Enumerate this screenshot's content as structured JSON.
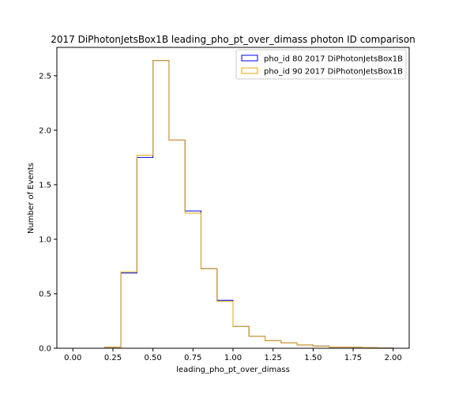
{
  "chart_data": {
    "type": "bar",
    "title": "2017 DiPhotonJetsBox1B leading_pho_pt_over_dimass photon ID comparison",
    "xlabel": "leading_pho_pt_over_dimass",
    "ylabel": "Number of Events",
    "xlim": [
      -0.1,
      2.1
    ],
    "ylim": [
      0,
      2.76
    ],
    "xticks": [
      "0.00",
      "0.25",
      "0.50",
      "0.75",
      "1.00",
      "1.25",
      "1.50",
      "1.75",
      "2.00"
    ],
    "yticks": [
      "0.0",
      "0.5",
      "1.0",
      "1.5",
      "2.0",
      "2.5"
    ],
    "grid": false,
    "legend_position": "top-right",
    "bin_edges": [
      0.0,
      0.1,
      0.2,
      0.3,
      0.4,
      0.5,
      0.6,
      0.7,
      0.8,
      0.9,
      1.0,
      1.1,
      1.2,
      1.3,
      1.4,
      1.5,
      1.6,
      1.7,
      1.8,
      1.9,
      2.0
    ],
    "series": [
      {
        "name": "pho_id 80 2017 DiPhotonJetsBox1B",
        "color": "#0000ff",
        "values": [
          0.0,
          0.0,
          0.01,
          0.69,
          1.75,
          2.64,
          1.91,
          1.26,
          0.73,
          0.44,
          0.2,
          0.11,
          0.07,
          0.05,
          0.03,
          0.02,
          0.01,
          0.01,
          0.005,
          0.003
        ]
      },
      {
        "name": "pho_id 90 2017 DiPhotonJetsBox1B",
        "color": "#e6a800",
        "values": [
          0.0,
          0.0,
          0.01,
          0.7,
          1.77,
          2.64,
          1.91,
          1.24,
          0.73,
          0.43,
          0.2,
          0.11,
          0.07,
          0.05,
          0.03,
          0.02,
          0.01,
          0.01,
          0.005,
          0.003
        ]
      }
    ]
  }
}
